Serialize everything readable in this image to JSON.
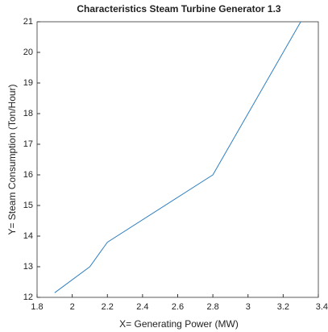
{
  "chart_data": {
    "type": "line",
    "title": "Characteristics Steam Turbine Generator 1.3",
    "x_label": "X= Generating Power (MW)",
    "y_label": "Y= Steam Consumption (Ton/Hour)",
    "x": [
      1.9,
      2.1,
      2.2,
      2.8,
      3.0,
      3.3
    ],
    "series": [
      {
        "name": "Steam consumption",
        "color": "#2f7fc1",
        "values": [
          12.15,
          13.0,
          13.8,
          16.0,
          18.0,
          21.0
        ]
      }
    ],
    "xlim": [
      1.8,
      3.4
    ],
    "xticks": [
      1.8,
      2,
      2.2,
      2.4,
      2.6,
      2.8,
      3,
      3.2,
      3.4
    ],
    "ylim": [
      12,
      21
    ],
    "yticks": [
      12,
      13,
      14,
      15,
      16,
      17,
      18,
      19,
      20,
      21
    ],
    "grid": false,
    "legend": false
  }
}
